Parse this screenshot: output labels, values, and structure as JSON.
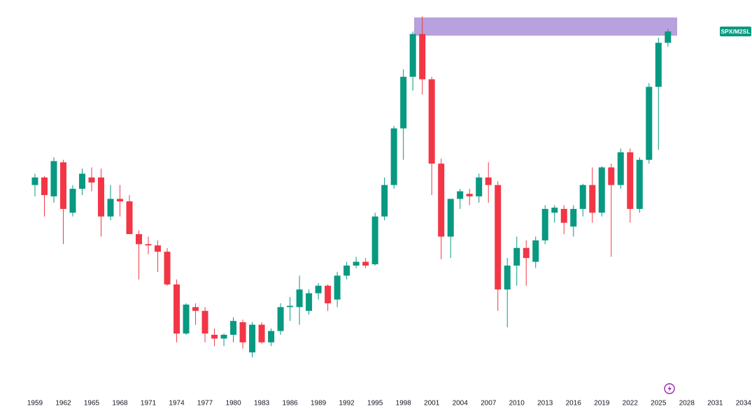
{
  "chart_data": {
    "type": "candlestick",
    "title": "SPX/M2SL",
    "up_color": "#089981",
    "down_color": "#f23645",
    "x": [
      1959,
      1960,
      1961,
      1962,
      1963,
      1964,
      1965,
      1966,
      1967,
      1968,
      1969,
      1970,
      1971,
      1972,
      1973,
      1974,
      1975,
      1976,
      1977,
      1978,
      1979,
      1980,
      1981,
      1982,
      1983,
      1984,
      1985,
      1986,
      1987,
      1988,
      1989,
      1990,
      1991,
      1992,
      1993,
      1994,
      1995,
      1996,
      1997,
      1998,
      1999,
      2000,
      2001,
      2002,
      2003,
      2004,
      2005,
      2006,
      2007,
      2008,
      2009,
      2010,
      2011,
      2012,
      2013,
      2014,
      2015,
      2016,
      2017,
      2018,
      2019,
      2020,
      2021,
      2022,
      2023,
      2024,
      2025,
      2026
    ],
    "open": [
      0.197,
      0.203,
      0.188,
      0.215,
      0.175,
      0.194,
      0.203,
      0.203,
      0.172,
      0.186,
      0.184,
      0.158,
      0.15,
      0.149,
      0.144,
      0.118,
      0.079,
      0.1,
      0.097,
      0.078,
      0.075,
      0.078,
      0.088,
      0.064,
      0.086,
      0.072,
      0.081,
      0.1,
      0.1,
      0.097,
      0.111,
      0.117,
      0.106,
      0.125,
      0.133,
      0.136,
      0.134,
      0.172,
      0.197,
      0.242,
      0.283,
      0.317,
      0.281,
      0.214,
      0.156,
      0.186,
      0.19,
      0.188,
      0.203,
      0.197,
      0.114,
      0.133,
      0.147,
      0.136,
      0.153,
      0.175,
      0.178,
      0.164,
      0.178,
      0.197,
      0.175,
      0.211,
      0.197,
      0.223,
      0.178,
      0.217,
      0.275,
      0.31
    ],
    "high": [
      0.206,
      0.204,
      0.219,
      0.217,
      0.197,
      0.21,
      0.211,
      0.21,
      0.197,
      0.197,
      0.189,
      0.161,
      0.156,
      0.153,
      0.147,
      0.122,
      0.103,
      0.103,
      0.1,
      0.083,
      0.079,
      0.092,
      0.09,
      0.088,
      0.088,
      0.083,
      0.103,
      0.108,
      0.125,
      0.114,
      0.119,
      0.118,
      0.128,
      0.136,
      0.14,
      0.139,
      0.175,
      0.203,
      0.244,
      0.289,
      0.319,
      0.331,
      0.283,
      0.218,
      0.186,
      0.194,
      0.194,
      0.206,
      0.215,
      0.2,
      0.139,
      0.156,
      0.153,
      0.156,
      0.181,
      0.181,
      0.181,
      0.181,
      0.198,
      0.211,
      0.212,
      0.214,
      0.226,
      0.226,
      0.219,
      0.278,
      0.314,
      0.321
    ],
    "low": [
      0.188,
      0.172,
      0.183,
      0.15,
      0.172,
      0.189,
      0.192,
      0.156,
      0.169,
      0.172,
      0.158,
      0.122,
      0.142,
      0.128,
      0.117,
      0.072,
      0.078,
      0.086,
      0.072,
      0.069,
      0.069,
      0.072,
      0.067,
      0.06,
      0.071,
      0.069,
      0.078,
      0.089,
      0.086,
      0.094,
      0.106,
      0.097,
      0.1,
      0.122,
      0.131,
      0.131,
      0.133,
      0.169,
      0.194,
      0.217,
      0.272,
      0.269,
      0.189,
      0.138,
      0.139,
      0.178,
      0.181,
      0.183,
      0.183,
      0.097,
      0.084,
      0.117,
      0.117,
      0.131,
      0.15,
      0.167,
      0.158,
      0.156,
      0.172,
      0.167,
      0.172,
      0.14,
      0.194,
      0.167,
      0.175,
      0.214,
      0.225,
      0.307
    ],
    "close": [
      0.203,
      0.189,
      0.216,
      0.178,
      0.194,
      0.206,
      0.199,
      0.172,
      0.186,
      0.184,
      0.158,
      0.15,
      0.149,
      0.144,
      0.118,
      0.079,
      0.102,
      0.097,
      0.079,
      0.075,
      0.078,
      0.089,
      0.072,
      0.086,
      0.072,
      0.081,
      0.1,
      0.101,
      0.114,
      0.111,
      0.117,
      0.103,
      0.125,
      0.133,
      0.136,
      0.133,
      0.172,
      0.197,
      0.242,
      0.283,
      0.317,
      0.281,
      0.214,
      0.156,
      0.186,
      0.192,
      0.188,
      0.203,
      0.197,
      0.114,
      0.133,
      0.147,
      0.139,
      0.153,
      0.178,
      0.179,
      0.167,
      0.178,
      0.197,
      0.175,
      0.211,
      0.197,
      0.223,
      0.178,
      0.217,
      0.275,
      0.31,
      0.319
    ],
    "xlim": [
      1955.3,
      2034.9
    ],
    "xticks": [
      1959,
      1962,
      1965,
      1968,
      1971,
      1974,
      1977,
      1980,
      1983,
      1986,
      1989,
      1992,
      1995,
      1998,
      2001,
      2004,
      2007,
      2010,
      2013,
      2016,
      2019,
      2022,
      2025,
      2028,
      2031,
      2034
    ],
    "ylim": [
      0.033,
      0.344
    ]
  }
}
